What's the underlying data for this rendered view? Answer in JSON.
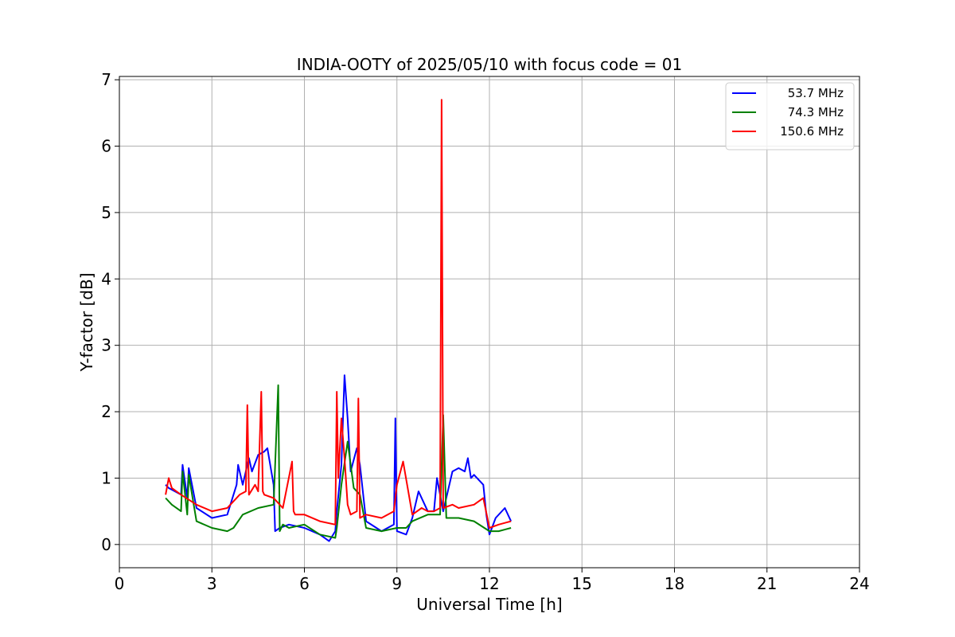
{
  "chart_data": {
    "type": "line",
    "title": "INDIA-OOTY of 2025/05/10 with focus code = 01",
    "xlabel": "Universal Time [h]",
    "ylabel": "Y-factor [dB]",
    "xlim": [
      0,
      24
    ],
    "ylim": [
      -0.35,
      7.05
    ],
    "xticks": [
      0,
      3,
      6,
      9,
      12,
      15,
      18,
      21,
      24
    ],
    "yticks": [
      0,
      1,
      2,
      3,
      4,
      5,
      6,
      7
    ],
    "grid": true,
    "legend_position": "top-right",
    "series": [
      {
        "name": "53.7 MHz",
        "color": "#0000ff",
        "x": [
          1.5,
          1.6,
          2.0,
          2.05,
          2.2,
          2.25,
          2.5,
          3.0,
          3.5,
          3.8,
          3.85,
          4.0,
          4.2,
          4.3,
          4.5,
          4.7,
          4.8,
          5.0,
          5.05,
          5.2,
          5.5,
          6.0,
          6.5,
          6.8,
          7.0,
          7.05,
          7.2,
          7.3,
          7.4,
          7.5,
          7.7,
          7.8,
          8.0,
          8.5,
          8.9,
          8.95,
          9.0,
          9.3,
          9.5,
          9.7,
          10.0,
          10.2,
          10.3,
          10.5,
          10.8,
          11.0,
          11.2,
          11.3,
          11.4,
          11.5,
          11.8,
          11.9,
          12.0,
          12.2,
          12.5,
          12.7
        ],
        "y": [
          0.9,
          0.85,
          0.75,
          1.2,
          0.7,
          1.15,
          0.55,
          0.4,
          0.45,
          0.9,
          1.2,
          0.9,
          1.3,
          1.1,
          1.35,
          1.4,
          1.45,
          0.9,
          0.2,
          0.25,
          0.3,
          0.25,
          0.15,
          0.05,
          0.2,
          0.5,
          1.2,
          2.55,
          1.9,
          1.1,
          1.45,
          1.2,
          0.35,
          0.2,
          0.3,
          1.9,
          0.2,
          0.15,
          0.4,
          0.8,
          0.5,
          0.5,
          1.0,
          0.5,
          1.1,
          1.15,
          1.1,
          1.3,
          1.0,
          1.05,
          0.9,
          0.45,
          0.15,
          0.4,
          0.55,
          0.35
        ]
      },
      {
        "name": "74.3 MHz",
        "color": "#008000",
        "x": [
          1.5,
          1.7,
          2.0,
          2.05,
          2.2,
          2.25,
          2.5,
          3.0,
          3.5,
          3.7,
          4.0,
          4.5,
          5.0,
          5.15,
          5.2,
          5.3,
          5.5,
          6.0,
          6.5,
          7.0,
          7.05,
          7.2,
          7.4,
          7.6,
          7.8,
          8.0,
          8.5,
          9.0,
          9.3,
          9.5,
          10.0,
          10.4,
          10.5,
          10.6,
          11.0,
          11.5,
          12.0,
          12.3,
          12.7
        ],
        "y": [
          0.7,
          0.6,
          0.5,
          1.1,
          0.45,
          1.05,
          0.35,
          0.25,
          0.2,
          0.25,
          0.45,
          0.55,
          0.6,
          2.4,
          0.2,
          0.3,
          0.25,
          0.3,
          0.15,
          0.1,
          0.25,
          0.9,
          1.55,
          0.85,
          0.75,
          0.25,
          0.2,
          0.25,
          0.25,
          0.35,
          0.45,
          0.45,
          1.95,
          0.4,
          0.4,
          0.35,
          0.2,
          0.2,
          0.25
        ]
      },
      {
        "name": "150.6 MHz",
        "color": "#ff0000",
        "x": [
          1.5,
          1.6,
          1.7,
          2.0,
          2.5,
          3.0,
          3.5,
          3.9,
          4.1,
          4.15,
          4.2,
          4.4,
          4.5,
          4.6,
          4.65,
          4.7,
          5.0,
          5.1,
          5.3,
          5.6,
          5.65,
          5.7,
          6.0,
          6.5,
          7.0,
          7.05,
          7.1,
          7.2,
          7.3,
          7.4,
          7.5,
          7.7,
          7.75,
          7.8,
          8.0,
          8.5,
          8.9,
          9.0,
          9.2,
          9.5,
          9.8,
          10.0,
          10.2,
          10.4,
          10.45,
          10.5,
          10.8,
          11.0,
          11.5,
          11.8,
          12.0,
          12.3,
          12.7
        ],
        "y": [
          0.75,
          1.0,
          0.85,
          0.75,
          0.6,
          0.5,
          0.55,
          0.75,
          0.8,
          2.1,
          0.75,
          0.9,
          0.8,
          2.3,
          0.8,
          0.75,
          0.7,
          0.65,
          0.55,
          1.25,
          0.5,
          0.45,
          0.45,
          0.35,
          0.3,
          2.3,
          1.0,
          1.9,
          1.3,
          0.6,
          0.45,
          0.5,
          2.2,
          0.4,
          0.45,
          0.4,
          0.5,
          0.9,
          1.25,
          0.45,
          0.55,
          0.5,
          0.5,
          0.55,
          6.7,
          0.55,
          0.6,
          0.55,
          0.6,
          0.7,
          0.25,
          0.3,
          0.35
        ]
      }
    ]
  }
}
